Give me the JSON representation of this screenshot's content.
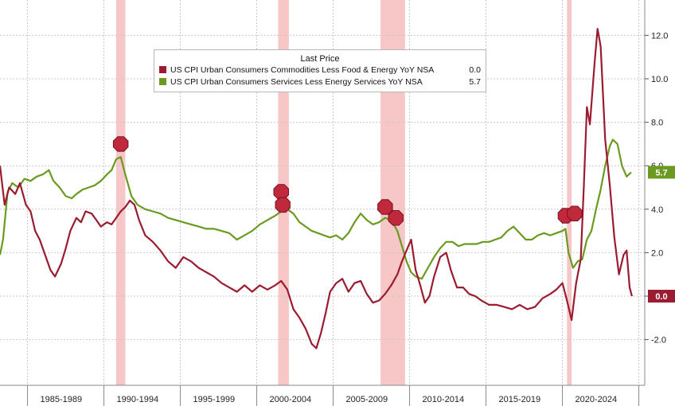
{
  "colors": {
    "core_goods": "#9b1b30",
    "services": "#6a9a1f",
    "recession": "#f4b4b4",
    "grid": "#c9c9c9"
  },
  "legend": {
    "title": "Last Price",
    "entries": [
      {
        "label": "US CPI Urban Consumers Commodities Less Food & Energy YoY NSA",
        "value": "0.0"
      },
      {
        "label": "US CPI Urban Consumers Services Less Energy Services YoY NSA",
        "value": "5.7"
      }
    ]
  },
  "chart_data": {
    "type": "line",
    "title": "",
    "xlabel": "",
    "ylabel": "",
    "ylim": [
      -4,
      14
    ],
    "xlim": [
      1983.0,
      2025.5
    ],
    "y_ticks": [
      12,
      10,
      8,
      6,
      4,
      2,
      0,
      -2
    ],
    "y_tick_labels": [
      "12.0",
      "10.0",
      "8.0",
      "6.0",
      "4.0",
      "2.0",
      "0.0",
      "-2.0"
    ],
    "x_tick_labels": [
      "1985-1989",
      "1990-1994",
      "1995-1999",
      "2000-2004",
      "2005-2009",
      "2010-2014",
      "2015-2019",
      "2020-2024"
    ],
    "x_tick_centers": [
      1987.0,
      1992.0,
      1997.0,
      2002.0,
      2007.0,
      2012.0,
      2017.0,
      2022.0
    ],
    "x_tick_dividers": [
      1984.8,
      1989.8,
      1994.8,
      1999.8,
      2004.8,
      2009.8,
      2014.8,
      2019.8,
      2024.8
    ],
    "recessions": [
      [
        1990.6,
        1991.2
      ],
      [
        2001.2,
        2001.9
      ],
      [
        2007.9,
        2009.5
      ],
      [
        2020.1,
        2020.4
      ]
    ],
    "grid": true,
    "legend_position": "top-center",
    "last_value_labels": [
      {
        "series": "services",
        "text": "5.7",
        "value": 5.7
      },
      {
        "series": "core_goods",
        "text": "0.0",
        "value": 0.0
      }
    ],
    "series": [
      {
        "key": "core_goods",
        "name": "US CPI Urban Consumers Commodities Less Food & Energy YoY NSA",
        "points": [
          [
            1983.0,
            6.0
          ],
          [
            1983.3,
            4.2
          ],
          [
            1983.6,
            5.0
          ],
          [
            1984.0,
            4.7
          ],
          [
            1984.3,
            5.2
          ],
          [
            1984.7,
            4.2
          ],
          [
            1985.0,
            3.9
          ],
          [
            1985.3,
            3.0
          ],
          [
            1985.6,
            2.6
          ],
          [
            1986.0,
            1.8
          ],
          [
            1986.3,
            1.2
          ],
          [
            1986.6,
            0.9
          ],
          [
            1987.0,
            1.5
          ],
          [
            1987.3,
            2.2
          ],
          [
            1987.6,
            3.0
          ],
          [
            1988.0,
            3.6
          ],
          [
            1988.3,
            3.4
          ],
          [
            1988.6,
            3.9
          ],
          [
            1989.0,
            3.8
          ],
          [
            1989.3,
            3.5
          ],
          [
            1989.6,
            3.2
          ],
          [
            1990.0,
            3.4
          ],
          [
            1990.3,
            3.3
          ],
          [
            1990.6,
            3.6
          ],
          [
            1990.9,
            3.9
          ],
          [
            1991.2,
            4.1
          ],
          [
            1991.5,
            4.4
          ],
          [
            1991.8,
            4.2
          ],
          [
            1992.1,
            3.5
          ],
          [
            1992.5,
            2.8
          ],
          [
            1993.0,
            2.5
          ],
          [
            1993.5,
            2.1
          ],
          [
            1994.0,
            1.6
          ],
          [
            1994.5,
            1.3
          ],
          [
            1995.0,
            1.8
          ],
          [
            1995.5,
            1.6
          ],
          [
            1996.0,
            1.3
          ],
          [
            1996.5,
            1.1
          ],
          [
            1997.0,
            0.9
          ],
          [
            1997.5,
            0.6
          ],
          [
            1998.0,
            0.4
          ],
          [
            1998.5,
            0.2
          ],
          [
            1999.0,
            0.5
          ],
          [
            1999.5,
            0.2
          ],
          [
            2000.0,
            0.5
          ],
          [
            2000.5,
            0.3
          ],
          [
            2001.0,
            0.5
          ],
          [
            2001.4,
            0.7
          ],
          [
            2001.8,
            0.3
          ],
          [
            2002.2,
            -0.6
          ],
          [
            2002.6,
            -1.0
          ],
          [
            2003.0,
            -1.5
          ],
          [
            2003.4,
            -2.2
          ],
          [
            2003.7,
            -2.4
          ],
          [
            2004.0,
            -1.7
          ],
          [
            2004.3,
            -0.8
          ],
          [
            2004.6,
            0.2
          ],
          [
            2005.0,
            0.6
          ],
          [
            2005.4,
            0.8
          ],
          [
            2005.8,
            0.2
          ],
          [
            2006.2,
            0.6
          ],
          [
            2006.6,
            0.7
          ],
          [
            2007.0,
            0.1
          ],
          [
            2007.4,
            -0.3
          ],
          [
            2007.8,
            -0.2
          ],
          [
            2008.2,
            0.1
          ],
          [
            2008.6,
            0.5
          ],
          [
            2009.0,
            1.0
          ],
          [
            2009.3,
            1.6
          ],
          [
            2009.6,
            2.1
          ],
          [
            2009.9,
            2.6
          ],
          [
            2010.2,
            1.2
          ],
          [
            2010.5,
            0.5
          ],
          [
            2010.8,
            -0.3
          ],
          [
            2011.1,
            0.0
          ],
          [
            2011.4,
            0.9
          ],
          [
            2011.8,
            1.8
          ],
          [
            2012.2,
            2.0
          ],
          [
            2012.5,
            1.2
          ],
          [
            2012.9,
            0.4
          ],
          [
            2013.3,
            0.4
          ],
          [
            2013.7,
            0.1
          ],
          [
            2014.1,
            0.0
          ],
          [
            2014.5,
            -0.2
          ],
          [
            2015.0,
            -0.4
          ],
          [
            2015.5,
            -0.4
          ],
          [
            2016.0,
            -0.5
          ],
          [
            2016.5,
            -0.6
          ],
          [
            2017.0,
            -0.4
          ],
          [
            2017.5,
            -0.6
          ],
          [
            2018.0,
            -0.5
          ],
          [
            2018.5,
            -0.1
          ],
          [
            2019.0,
            0.1
          ],
          [
            2019.4,
            0.3
          ],
          [
            2019.8,
            0.6
          ],
          [
            2020.1,
            -0.2
          ],
          [
            2020.4,
            -1.1
          ],
          [
            2020.7,
            0.6
          ],
          [
            2021.0,
            1.7
          ],
          [
            2021.2,
            5.0
          ],
          [
            2021.4,
            8.7
          ],
          [
            2021.6,
            7.9
          ],
          [
            2021.9,
            10.7
          ],
          [
            2022.1,
            12.3
          ],
          [
            2022.3,
            11.5
          ],
          [
            2022.6,
            7.2
          ],
          [
            2022.9,
            5.1
          ],
          [
            2023.2,
            2.7
          ],
          [
            2023.5,
            1.0
          ],
          [
            2023.8,
            1.9
          ],
          [
            2024.0,
            2.1
          ],
          [
            2024.2,
            0.4
          ],
          [
            2024.35,
            0.0
          ]
        ]
      },
      {
        "key": "services",
        "name": "US CPI Urban Consumers Services Less Energy Services YoY NSA",
        "points": [
          [
            1983.0,
            1.9
          ],
          [
            1983.2,
            2.6
          ],
          [
            1983.5,
            4.8
          ],
          [
            1983.8,
            5.2
          ],
          [
            1984.2,
            5.0
          ],
          [
            1984.6,
            5.4
          ],
          [
            1985.0,
            5.3
          ],
          [
            1985.4,
            5.5
          ],
          [
            1985.8,
            5.6
          ],
          [
            1986.2,
            5.8
          ],
          [
            1986.5,
            5.3
          ],
          [
            1986.9,
            5.0
          ],
          [
            1987.3,
            4.6
          ],
          [
            1987.7,
            4.5
          ],
          [
            1988.0,
            4.7
          ],
          [
            1988.4,
            4.9
          ],
          [
            1988.8,
            5.0
          ],
          [
            1989.2,
            5.1
          ],
          [
            1989.6,
            5.3
          ],
          [
            1990.0,
            5.6
          ],
          [
            1990.3,
            5.8
          ],
          [
            1990.6,
            6.3
          ],
          [
            1990.9,
            6.4
          ],
          [
            1991.2,
            5.6
          ],
          [
            1991.6,
            4.6
          ],
          [
            1992.0,
            4.2
          ],
          [
            1992.5,
            4.0
          ],
          [
            1993.0,
            3.9
          ],
          [
            1993.5,
            3.8
          ],
          [
            1994.0,
            3.6
          ],
          [
            1994.5,
            3.5
          ],
          [
            1995.0,
            3.4
          ],
          [
            1995.5,
            3.3
          ],
          [
            1996.0,
            3.2
          ],
          [
            1996.5,
            3.1
          ],
          [
            1997.0,
            3.1
          ],
          [
            1997.5,
            3.0
          ],
          [
            1998.0,
            2.9
          ],
          [
            1998.5,
            2.6
          ],
          [
            1999.0,
            2.8
          ],
          [
            1999.5,
            3.0
          ],
          [
            2000.0,
            3.3
          ],
          [
            2000.5,
            3.5
          ],
          [
            2001.0,
            3.7
          ],
          [
            2001.4,
            3.9
          ],
          [
            2001.8,
            4.0
          ],
          [
            2002.2,
            3.8
          ],
          [
            2002.6,
            3.4
          ],
          [
            2003.0,
            3.2
          ],
          [
            2003.4,
            3.0
          ],
          [
            2003.8,
            2.9
          ],
          [
            2004.2,
            2.8
          ],
          [
            2004.6,
            2.7
          ],
          [
            2005.0,
            2.8
          ],
          [
            2005.4,
            2.6
          ],
          [
            2005.8,
            2.9
          ],
          [
            2006.2,
            3.4
          ],
          [
            2006.6,
            3.8
          ],
          [
            2007.0,
            3.5
          ],
          [
            2007.4,
            3.3
          ],
          [
            2007.8,
            3.4
          ],
          [
            2008.2,
            3.6
          ],
          [
            2008.6,
            3.5
          ],
          [
            2009.0,
            3.0
          ],
          [
            2009.3,
            2.3
          ],
          [
            2009.6,
            1.6
          ],
          [
            2009.9,
            1.1
          ],
          [
            2010.2,
            0.9
          ],
          [
            2010.6,
            0.8
          ],
          [
            2011.0,
            1.3
          ],
          [
            2011.4,
            1.8
          ],
          [
            2011.8,
            2.2
          ],
          [
            2012.2,
            2.5
          ],
          [
            2012.6,
            2.5
          ],
          [
            2013.0,
            2.3
          ],
          [
            2013.4,
            2.4
          ],
          [
            2013.8,
            2.4
          ],
          [
            2014.2,
            2.4
          ],
          [
            2014.6,
            2.5
          ],
          [
            2015.0,
            2.5
          ],
          [
            2015.4,
            2.6
          ],
          [
            2015.8,
            2.7
          ],
          [
            2016.2,
            3.0
          ],
          [
            2016.6,
            3.2
          ],
          [
            2017.0,
            2.9
          ],
          [
            2017.4,
            2.6
          ],
          [
            2017.8,
            2.6
          ],
          [
            2018.2,
            2.8
          ],
          [
            2018.6,
            2.9
          ],
          [
            2019.0,
            2.8
          ],
          [
            2019.4,
            2.9
          ],
          [
            2019.8,
            3.0
          ],
          [
            2020.0,
            3.1
          ],
          [
            2020.2,
            2.0
          ],
          [
            2020.5,
            1.3
          ],
          [
            2020.8,
            1.6
          ],
          [
            2021.1,
            1.7
          ],
          [
            2021.4,
            2.6
          ],
          [
            2021.7,
            3.0
          ],
          [
            2022.0,
            4.0
          ],
          [
            2022.3,
            4.9
          ],
          [
            2022.6,
            6.0
          ],
          [
            2022.9,
            6.9
          ],
          [
            2023.1,
            7.2
          ],
          [
            2023.4,
            7.0
          ],
          [
            2023.7,
            6.0
          ],
          [
            2024.0,
            5.5
          ],
          [
            2024.3,
            5.7
          ]
        ]
      }
    ]
  }
}
